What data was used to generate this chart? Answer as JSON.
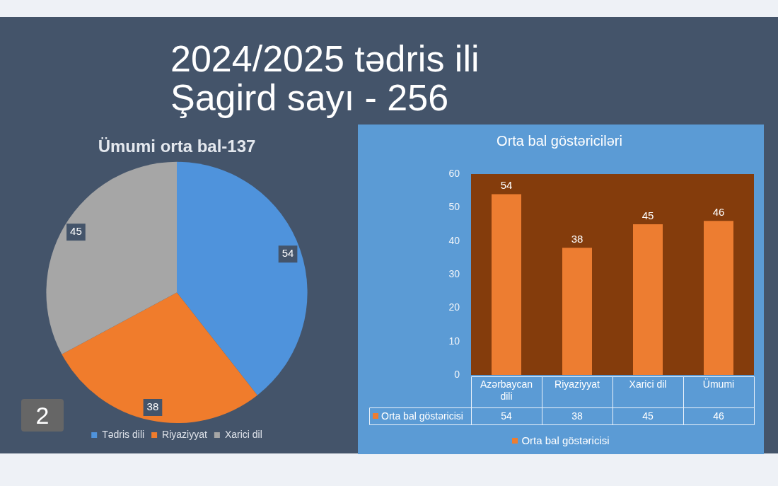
{
  "chart_data": [
    {
      "type": "pie",
      "title": "Ümumi orta bal-137",
      "categories": [
        "Tədris dili",
        "Riyaziyyat",
        "Xarici dil"
      ],
      "values": [
        54,
        38,
        45
      ],
      "colors": [
        "#4f93dc",
        "#f07c2c",
        "#a6a6a6"
      ],
      "data_labels": true,
      "legend": "bottom",
      "annotations": [
        "2024/2025 tədris ili",
        "Şagird sayı - 256",
        "2"
      ]
    },
    {
      "type": "bar",
      "title": "Orta bal göstəriciləri",
      "categories": [
        "Azərbaycan dili",
        "Riyaziyyat",
        "Xarici dil",
        "Ümumi"
      ],
      "series": [
        {
          "name": "Orta bal göstəricisi",
          "color": "#ed7d31",
          "values": [
            54,
            38,
            45,
            46
          ]
        }
      ],
      "ylim": [
        0,
        60
      ],
      "yticks": [
        0,
        10,
        20,
        30,
        40,
        50,
        60
      ],
      "data_labels": true,
      "legend": "bottom",
      "annotations": [
        {
          "text": "54",
          "x": "Azərbaycan dili",
          "y": 54
        },
        {
          "text": "38",
          "x": "Riyaziyyat",
          "y": 38
        },
        {
          "text": "45",
          "x": "Xarici dil",
          "y": 45
        },
        {
          "text": "46",
          "x": "Ümumi",
          "y": 46
        }
      ]
    }
  ]
}
